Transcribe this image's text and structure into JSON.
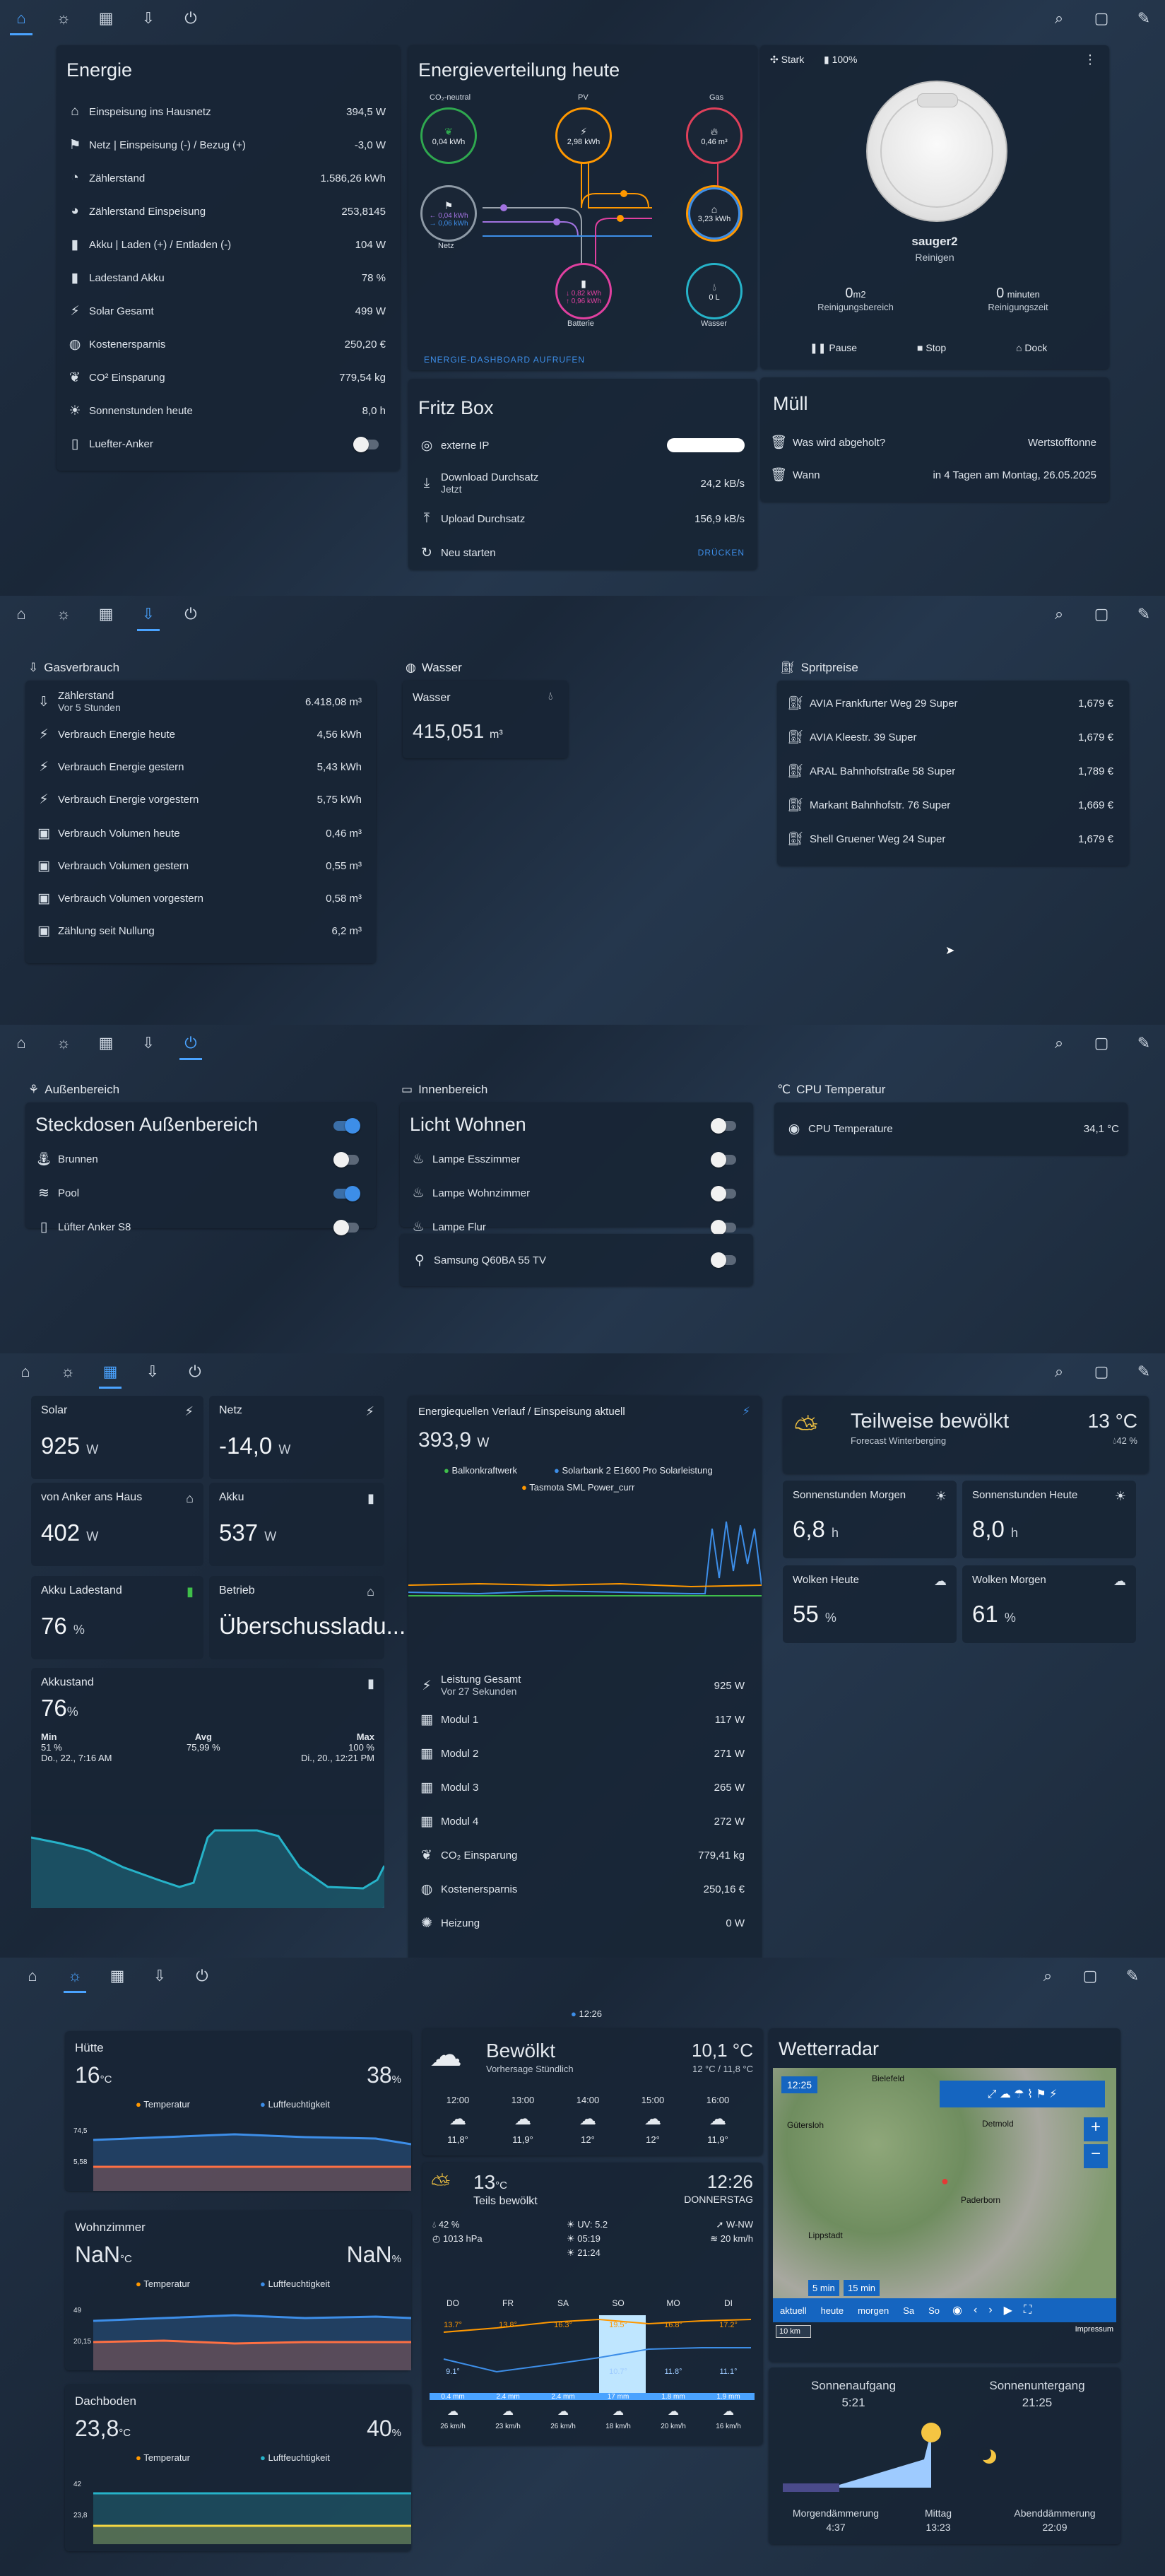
{
  "s1": {
    "energie": {
      "title": "Energie",
      "rows": [
        {
          "label": "Einspeisung ins Hausnetz",
          "value": "394,5 W",
          "icon": "home-icon"
        },
        {
          "label": "Netz | Einspeisung (-) / Bezug (+)",
          "value": "-3,0 W",
          "icon": "transmission-tower-icon"
        },
        {
          "label": "Zählerstand",
          "value": "1.586,26 kWh",
          "icon": "meter-icon"
        },
        {
          "label": "Zählerstand Einspeisung",
          "value": "253,8145",
          "icon": "meter-export-icon"
        },
        {
          "label": "Akku | Laden (+) / Entladen (-)",
          "value": "104 W",
          "icon": "battery-icon"
        },
        {
          "label": "Ladestand Akku",
          "value": "78 %",
          "icon": "battery-level-icon"
        },
        {
          "label": "Solar Gesamt",
          "value": "499 W",
          "icon": "solar-power-icon"
        },
        {
          "label": "Kostenersparnis",
          "value": "250,20 €",
          "icon": "piggy-bank-icon"
        },
        {
          "label": "CO² Einsparung",
          "value": "779,54 kg",
          "icon": "leaf-icon"
        },
        {
          "label": "Sonnenstunden heute",
          "value": "8,0 h",
          "icon": "weather-sunny-icon"
        }
      ],
      "fan_label": "Luefter-Anker"
    },
    "verteilung": {
      "title": "Energieverteilung heute",
      "co2_label": "CO₂-neutral",
      "co2_value": "0,04 kWh",
      "pv_label": "PV",
      "pv_value": "2,98 kWh",
      "gas_label": "Gas",
      "gas_value": "0,46 m³",
      "netz_label": "Netz",
      "netz_in": "← 0,04 kWh",
      "netz_out": "→ 0,06 kWh",
      "home_value": "3,23 kWh",
      "batt_label": "Batterie",
      "batt_in": "↓ 0,82 kWh",
      "batt_out": "↑ 0,96 kWh",
      "water_label": "Wasser",
      "water_value": "0 L",
      "link": "ENERGIE-DASHBOARD AUFRUFEN"
    },
    "fritz": {
      "title": "Fritz Box",
      "rows": [
        {
          "label": "externe IP",
          "value": ""
        },
        {
          "label": "Download Durchsatz",
          "sub": "Jetzt",
          "value": "24,2 kB/s"
        },
        {
          "label": "Upload Durchsatz",
          "value": "156,9 kB/s"
        },
        {
          "label": "Neu starten",
          "value": "DRÜCKEN"
        }
      ]
    },
    "vacuum": {
      "power": "Stark",
      "battery": "100%",
      "name": "sauger2",
      "status": "Reinigen",
      "area_value": "0",
      "area_unit": "m2",
      "area_label": "Reinigungsbereich",
      "time_value": "0",
      "time_unit": "minuten",
      "time_label": "Reinigungszeit",
      "pause": "Pause",
      "stop": "Stop",
      "dock": "Dock"
    },
    "muell": {
      "title": "Müll",
      "rows": [
        {
          "label": "Was wird abgeholt?",
          "value": "Wertstofftonne"
        },
        {
          "label": "Wann",
          "value": "in 4 Tagen am Montag, 26.05.2025"
        }
      ]
    }
  },
  "s2": {
    "gas": {
      "title": "Gasverbrauch",
      "rows": [
        {
          "label": "Zählerstand",
          "sub": "Vor 5 Stunden",
          "value": "6.418,08 m³"
        },
        {
          "label": "Verbrauch Energie heute",
          "value": "4,56 kWh"
        },
        {
          "label": "Verbrauch Energie gestern",
          "value": "5,43 kWh"
        },
        {
          "label": "Verbrauch Energie vorgestern",
          "value": "5,75 kWh"
        },
        {
          "label": "Verbrauch Volumen heute",
          "value": "0,46 m³"
        },
        {
          "label": "Verbrauch Volumen gestern",
          "value": "0,55 m³"
        },
        {
          "label": "Verbrauch Volumen vorgestern",
          "value": "0,58 m³"
        },
        {
          "label": "Zählung seit Nullung",
          "value": "6,2 m³"
        }
      ]
    },
    "wasser": {
      "title": "Wasser",
      "card_title": "Wasser",
      "value": "415,051",
      "unit": "m³"
    },
    "sprit": {
      "title": "Spritpreise",
      "rows": [
        {
          "label": "AVIA Frankfurter Weg 29 Super",
          "value": "1,679 €"
        },
        {
          "label": "AVIA Kleestr. 39 Super",
          "value": "1,679 €"
        },
        {
          "label": "ARAL Bahnhofstraße 58 Super",
          "value": "1,789 €"
        },
        {
          "label": "Markant Bahnhofstr. 76 Super",
          "value": "1,669 €"
        },
        {
          "label": "Shell Gruener Weg 24 Super",
          "value": "1,679 €"
        }
      ]
    }
  },
  "s3": {
    "aussen": {
      "section": "Außenbereich",
      "title": "Steckdosen Außenbereich",
      "rows": [
        "Brunnen",
        "Pool",
        "Lüfter Anker S8"
      ]
    },
    "innen": {
      "section": "Innenbereich",
      "title": "Licht Wohnen",
      "rows": [
        "Lampe Esszimmer",
        "Lampe Wohnzimmer",
        "Lampe Flur"
      ],
      "tv": "Samsung Q60BA 55 TV"
    },
    "cpu": {
      "section": "CPU Temperatur",
      "label": "CPU Temperature",
      "value": "34,1 °C"
    }
  },
  "s4": {
    "tiles": [
      {
        "label": "Solar",
        "value": "925",
        "unit": "W"
      },
      {
        "label": "Netz",
        "value": "-14,0",
        "unit": "W"
      },
      {
        "label": "von Anker ans Haus",
        "value": "402",
        "unit": "W"
      },
      {
        "label": "Akku",
        "value": "537",
        "unit": "W"
      },
      {
        "label": "Akku Ladestand",
        "value": "76",
        "unit": "%"
      },
      {
        "label": "Betrieb",
        "value": "Überschussladu...",
        "unit": ""
      }
    ],
    "akkustand": {
      "title": "Akkustand",
      "value": "76",
      "unit": "%",
      "min_label": "Min",
      "avg_label": "Avg",
      "max_label": "Max",
      "min": "51 %",
      "avg": "75,99 %",
      "max": "100 %",
      "min_time": "Do., 22., 7:16 AM",
      "max_time": "Di., 20., 12:21 PM"
    },
    "quellen": {
      "title": "Energiequellen Verlauf / Einspeisung aktuell",
      "value": "393,9",
      "unit": "W",
      "legend": [
        "Balkonkraftwerk",
        "Solarbank 2 E1600 Pro Solarleistung",
        "Tasmota SML Power_curr"
      ],
      "rows": [
        {
          "label": "Leistung Gesamt",
          "sub": "Vor 27 Sekunden",
          "value": "925 W"
        },
        {
          "label": "Modul 1",
          "value": "117 W"
        },
        {
          "label": "Modul 2",
          "value": "271 W"
        },
        {
          "label": "Modul 3",
          "value": "265 W"
        },
        {
          "label": "Modul 4",
          "value": "272 W"
        },
        {
          "label": "CO₂ Einsparung",
          "value": "779,41 kg"
        },
        {
          "label": "Kostenersparnis",
          "value": "250,16 €"
        },
        {
          "label": "Heizung",
          "value": "0 W"
        }
      ]
    },
    "weather": {
      "state": "Teilweise bewölkt",
      "sub": "Forecast Winterberging",
      "temp": "13 °C",
      "hum": "42 %"
    },
    "wtiles": [
      {
        "label": "Sonnenstunden Morgen",
        "value": "6,8",
        "unit": "h"
      },
      {
        "label": "Sonnenstunden Heute",
        "value": "8,0",
        "unit": "h"
      },
      {
        "label": "Wolken Heute",
        "value": "55",
        "unit": "%"
      },
      {
        "label": "Wolken Morgen",
        "value": "61",
        "unit": "%"
      }
    ]
  },
  "s5": {
    "clock": "12:26",
    "sensors": [
      {
        "name": "Hütte",
        "temp": "16",
        "hum": "38",
        "lo": "5,58",
        "hi": "74,5"
      },
      {
        "name": "Wohnzimmer",
        "temp": "NaN",
        "hum": "NaN",
        "lo": "20,15",
        "hi": "49"
      },
      {
        "name": "Dachboden",
        "temp": "23,8",
        "hum": "40",
        "lo": "23,8",
        "hi": "42"
      }
    ],
    "temp_unit": "°C",
    "hum_unit": "%",
    "temp_legend": "Temperatur",
    "hum_legend": "Luftfeuchtigkeit",
    "forecast": {
      "state": "Bewölkt",
      "sub": "Vorhersage Stündlich",
      "temp": "10,1 °C",
      "range": "12 °C / 11,8 °C",
      "hours": [
        {
          "t": "12:00",
          "v": "11,8°"
        },
        {
          "t": "13:00",
          "v": "11,9°"
        },
        {
          "t": "14:00",
          "v": "12°"
        },
        {
          "t": "15:00",
          "v": "12°"
        },
        {
          "t": "16:00",
          "v": "11,9°"
        }
      ]
    },
    "daily": {
      "temp": "13",
      "unit": "°C",
      "state": "Teils bewölkt",
      "time": "12:26",
      "day": "DONNERSTAG",
      "hum": "42 %",
      "press": "1013 hPa",
      "uv": "UV: 5.2",
      "sunrise": "05:19",
      "sunset": "21:24",
      "wind_dir": "W-NW",
      "wind": "20 km/h",
      "days": [
        "DO",
        "FR",
        "SA",
        "SO",
        "MO",
        "DI"
      ],
      "hi": [
        "13.7°",
        "13.8°",
        "16.3°",
        "19.5°",
        "16.8°",
        "17.2°"
      ],
      "lo": [
        "9.1°",
        "",
        "",
        "10.7°",
        "11.8°",
        "11.1°"
      ],
      "rain": [
        "0.4 mm",
        "2.4 mm",
        "2.4 mm",
        "17 mm",
        "1.8 mm",
        "1.9 mm"
      ],
      "wind_days": [
        "26 km/h",
        "23 km/h",
        "26 km/h",
        "18 km/h",
        "20 km/h",
        "16 km/h"
      ]
    },
    "radar": {
      "title": "Wetterradar",
      "time": "12:25",
      "cities": [
        "Bielefeld",
        "Gütersloh",
        "Detmold",
        "Lippstadt",
        "Paderborn"
      ],
      "buttons": [
        "aktuell",
        "heute",
        "morgen",
        "Sa",
        "So"
      ],
      "scale": "10 km",
      "impressum": "Impressum",
      "min5": "5 min",
      "min15": "15 min"
    },
    "sun": {
      "rise_label": "Sonnenaufgang",
      "rise": "5:21",
      "set_label": "Sonnenuntergang",
      "set": "21:25",
      "dawn_label": "Morgendämmerung",
      "dawn": "4:37",
      "noon_label": "Mittag",
      "noon": "13:23",
      "dusk_label": "Abenddämmerung",
      "dusk": "22:09"
    }
  }
}
